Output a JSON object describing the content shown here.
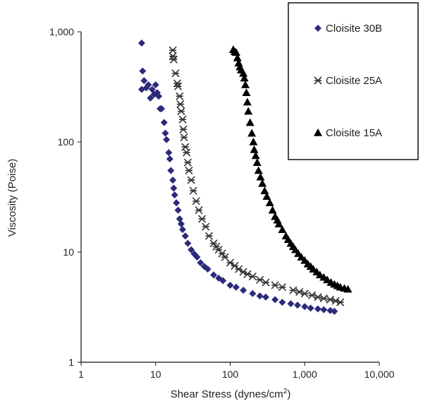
{
  "chart_data": {
    "type": "scatter",
    "title": "",
    "xlabel": "Shear Stress (dynes/cm",
    "xlabel_sup": "2",
    "xlabel_end": ")",
    "ylabel": "Viscosity (Poise)",
    "xscale": "log",
    "yscale": "log",
    "xlim": [
      1,
      10000
    ],
    "ylim": [
      1,
      1000
    ],
    "xticks": [
      1,
      10,
      100,
      1000,
      10000
    ],
    "xtick_labels": [
      "1",
      "10",
      "100",
      "1,000",
      "10,000"
    ],
    "yticks": [
      1,
      10,
      100,
      1000
    ],
    "ytick_labels": [
      "1",
      "10",
      "100",
      "1,000"
    ],
    "grid": false,
    "legend_position": "top-right",
    "series": [
      {
        "name": "Cloisite 30B",
        "marker": "diamond",
        "color": "#2b2a7a",
        "points": [
          [
            6.5,
            790
          ],
          [
            6.7,
            440
          ],
          [
            6.5,
            300
          ],
          [
            7,
            360
          ],
          [
            7.5,
            310
          ],
          [
            8,
            330
          ],
          [
            8.5,
            250
          ],
          [
            9,
            300
          ],
          [
            9.5,
            270
          ],
          [
            10,
            330
          ],
          [
            10.5,
            280
          ],
          [
            11,
            260
          ],
          [
            11.5,
            200
          ],
          [
            12,
            200
          ],
          [
            13,
            150
          ],
          [
            13.5,
            120
          ],
          [
            14,
            105
          ],
          [
            15,
            80
          ],
          [
            15.5,
            70
          ],
          [
            16,
            55
          ],
          [
            17,
            45
          ],
          [
            17.5,
            38
          ],
          [
            18,
            33
          ],
          [
            19,
            28
          ],
          [
            20,
            24
          ],
          [
            21,
            20
          ],
          [
            22,
            18
          ],
          [
            23,
            16
          ],
          [
            25,
            14
          ],
          [
            27,
            12
          ],
          [
            30,
            10.5
          ],
          [
            33,
            9.6
          ],
          [
            36,
            9
          ],
          [
            40,
            8
          ],
          [
            45,
            7.4
          ],
          [
            50,
            7
          ],
          [
            60,
            6.2
          ],
          [
            70,
            5.8
          ],
          [
            80,
            5.5
          ],
          [
            100,
            5
          ],
          [
            120,
            4.8
          ],
          [
            150,
            4.5
          ],
          [
            200,
            4.2
          ],
          [
            250,
            4
          ],
          [
            300,
            3.9
          ],
          [
            400,
            3.7
          ],
          [
            500,
            3.5
          ],
          [
            650,
            3.4
          ],
          [
            800,
            3.3
          ],
          [
            1000,
            3.2
          ],
          [
            1200,
            3.1
          ],
          [
            1500,
            3.05
          ],
          [
            1800,
            3.0
          ],
          [
            2200,
            2.95
          ],
          [
            2500,
            2.9
          ]
        ]
      },
      {
        "name": "Cloisite 25A",
        "marker": "asterisk",
        "color": "#333333",
        "points": [
          [
            17,
            680
          ],
          [
            17,
            600
          ],
          [
            17.5,
            560
          ],
          [
            18.5,
            420
          ],
          [
            19.5,
            340
          ],
          [
            20,
            320
          ],
          [
            21,
            260
          ],
          [
            21.5,
            220
          ],
          [
            22,
            190
          ],
          [
            23,
            160
          ],
          [
            23.5,
            130
          ],
          [
            24,
            110
          ],
          [
            25,
            90
          ],
          [
            26,
            80
          ],
          [
            27,
            65
          ],
          [
            28,
            55
          ],
          [
            30,
            45
          ],
          [
            32,
            36
          ],
          [
            35,
            29
          ],
          [
            38,
            24
          ],
          [
            42,
            20
          ],
          [
            47,
            17
          ],
          [
            52,
            14
          ],
          [
            60,
            12
          ],
          [
            65,
            11.2
          ],
          [
            70,
            10.5
          ],
          [
            78,
            9.7
          ],
          [
            85,
            9
          ],
          [
            100,
            8
          ],
          [
            115,
            7.5
          ],
          [
            130,
            7
          ],
          [
            150,
            6.6
          ],
          [
            170,
            6.3
          ],
          [
            200,
            6
          ],
          [
            250,
            5.6
          ],
          [
            300,
            5.3
          ],
          [
            400,
            5
          ],
          [
            500,
            4.8
          ],
          [
            700,
            4.5
          ],
          [
            850,
            4.35
          ],
          [
            1000,
            4.2
          ],
          [
            1250,
            4.05
          ],
          [
            1500,
            3.9
          ],
          [
            1800,
            3.8
          ],
          [
            2200,
            3.7
          ],
          [
            2600,
            3.6
          ],
          [
            3000,
            3.5
          ]
        ]
      },
      {
        "name": "Cloisite 15A",
        "marker": "triangle",
        "color": "#000000",
        "points": [
          [
            110,
            690
          ],
          [
            115,
            660
          ],
          [
            120,
            650
          ],
          [
            125,
            580
          ],
          [
            130,
            520
          ],
          [
            135,
            480
          ],
          [
            140,
            450
          ],
          [
            150,
            420
          ],
          [
            155,
            380
          ],
          [
            160,
            330
          ],
          [
            165,
            280
          ],
          [
            170,
            230
          ],
          [
            175,
            190
          ],
          [
            185,
            150
          ],
          [
            195,
            120
          ],
          [
            205,
            100
          ],
          [
            210,
            85
          ],
          [
            220,
            75
          ],
          [
            230,
            65
          ],
          [
            240,
            55
          ],
          [
            255,
            48
          ],
          [
            270,
            42
          ],
          [
            290,
            36
          ],
          [
            310,
            32
          ],
          [
            340,
            28
          ],
          [
            370,
            24
          ],
          [
            400,
            21
          ],
          [
            430,
            19.5
          ],
          [
            450,
            18
          ],
          [
            500,
            16
          ],
          [
            560,
            14
          ],
          [
            600,
            13
          ],
          [
            650,
            12
          ],
          [
            700,
            11.2
          ],
          [
            750,
            10.5
          ],
          [
            820,
            9.7
          ],
          [
            900,
            9
          ],
          [
            1000,
            8.4
          ],
          [
            1100,
            7.8
          ],
          [
            1200,
            7.4
          ],
          [
            1300,
            7
          ],
          [
            1450,
            6.6
          ],
          [
            1600,
            6.2
          ],
          [
            1800,
            5.9
          ],
          [
            2000,
            5.6
          ],
          [
            2250,
            5.3
          ],
          [
            2500,
            5.1
          ],
          [
            2750,
            4.95
          ],
          [
            3000,
            4.8
          ],
          [
            3400,
            4.7
          ],
          [
            3800,
            4.6
          ]
        ]
      }
    ]
  }
}
